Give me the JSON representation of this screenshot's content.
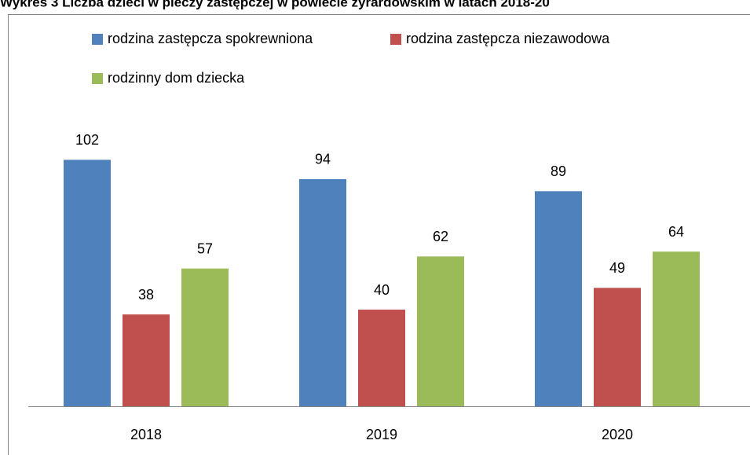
{
  "chart_data": {
    "type": "bar",
    "title": "Wykres 3 Liczba dzieci w pieczy zastępczej w powiecie żyrardowskim w latach 2018-20",
    "categories": [
      "2018",
      "2019",
      "2020"
    ],
    "series": [
      {
        "name": "rodzina zastępcza  spokrewniona",
        "color": "#4f81bd",
        "values": [
          102,
          94,
          89
        ]
      },
      {
        "name": "rodzina zastępcza  niezawodowa",
        "color": "#c0504d",
        "values": [
          38,
          40,
          49
        ]
      },
      {
        "name": "rodzinny dom dziecka",
        "color": "#9bbb59",
        "values": [
          57,
          62,
          64
        ]
      }
    ],
    "ylim": [
      0,
      120
    ]
  }
}
